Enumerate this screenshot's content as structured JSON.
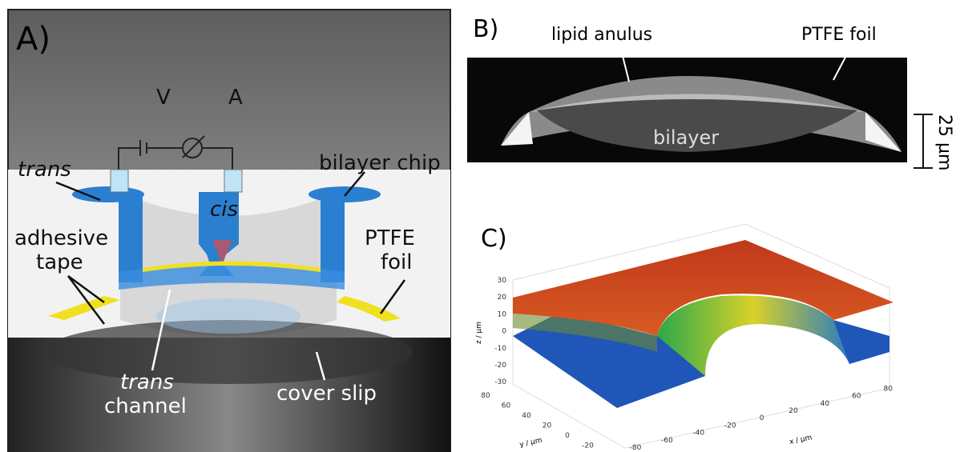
{
  "panel_a": {
    "label": "A)",
    "voltage": "V",
    "current": "A",
    "trans_top": "trans",
    "bilayer_chip": "bilayer chip",
    "cis": "cis",
    "adhesive_tape": [
      "adhesive",
      "tape"
    ],
    "ptfe_foil": [
      "PTFE",
      "foil"
    ],
    "trans_channel": [
      "trans",
      "channel"
    ],
    "cover_slip": "cover slip"
  },
  "panel_b": {
    "label": "B)",
    "lipid_anulus": "lipid anulus",
    "ptfe_foil": "PTFE foil",
    "bilayer": "bilayer",
    "scale": "25 µm"
  },
  "panel_c": {
    "label": "C)",
    "z_label": "z / µm",
    "y_label": "y / µm",
    "x_label": "x / µm",
    "zticks": [
      30,
      20,
      10,
      0,
      -10,
      -20,
      -30
    ],
    "yticks": [
      80,
      60,
      40,
      20,
      0,
      -20
    ],
    "xticks": [
      -80,
      -60,
      -40,
      -20,
      0,
      20,
      40,
      60,
      80
    ]
  }
}
